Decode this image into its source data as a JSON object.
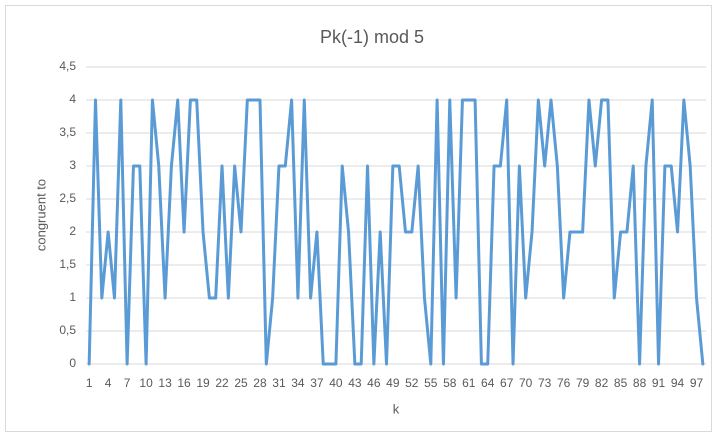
{
  "chart_data": {
    "type": "line",
    "title": "Pk(-1) mod 5",
    "x_label": "k",
    "y_label": "congruent to",
    "categories": [
      1,
      null,
      null,
      4,
      null,
      null,
      7,
      null,
      null,
      10,
      null,
      null,
      13,
      null,
      null,
      16,
      null,
      null,
      19,
      null,
      null,
      22,
      null,
      null,
      25,
      null,
      null,
      28,
      null,
      null,
      31,
      null,
      null,
      34,
      null,
      null,
      37,
      null,
      null,
      40,
      null,
      null,
      43,
      null,
      null,
      46,
      null,
      null,
      49,
      null,
      null,
      52,
      null,
      null,
      55,
      null,
      null,
      58,
      null,
      null,
      61,
      null,
      null,
      64,
      null,
      null,
      67,
      null,
      null,
      70,
      null,
      null,
      73,
      null,
      null,
      76,
      null,
      null,
      79,
      null,
      null,
      82,
      null,
      null,
      85,
      null,
      null,
      88,
      null,
      null,
      91,
      null,
      null,
      94,
      null,
      null,
      97,
      null
    ],
    "values": [
      0,
      4,
      1,
      2,
      1,
      4,
      0,
      3,
      3,
      0,
      4,
      3,
      1,
      3,
      4,
      2,
      4,
      4,
      2,
      1,
      1,
      3,
      1,
      3,
      2,
      4,
      4,
      4,
      0,
      1,
      3,
      3,
      4,
      1,
      4,
      1,
      2,
      0,
      0,
      0,
      3,
      2,
      0,
      0,
      3,
      0,
      2,
      0,
      3,
      3,
      2,
      2,
      3,
      1,
      0,
      4,
      0,
      4,
      1,
      4,
      4,
      4,
      0,
      0,
      3,
      3,
      4,
      0,
      3,
      1,
      2,
      4,
      3,
      4,
      3,
      1,
      2,
      2,
      2,
      4,
      3,
      4,
      4,
      1,
      2,
      2,
      3,
      0,
      3,
      4,
      0,
      3,
      3,
      2,
      4,
      3,
      1,
      0
    ],
    "color": "#5b9bd5",
    "ylim": [
      0,
      4.5
    ],
    "yticks": [
      0,
      {
        "value": 0.5,
        "label": "0,5"
      },
      1,
      {
        "value": 1.5,
        "label": "1,5"
      },
      2,
      {
        "value": 2.5,
        "label": "2,5"
      },
      3,
      {
        "value": 3.5,
        "label": "3,5"
      },
      4,
      {
        "value": 4.5,
        "label": "4,5"
      }
    ],
    "grid": true
  }
}
